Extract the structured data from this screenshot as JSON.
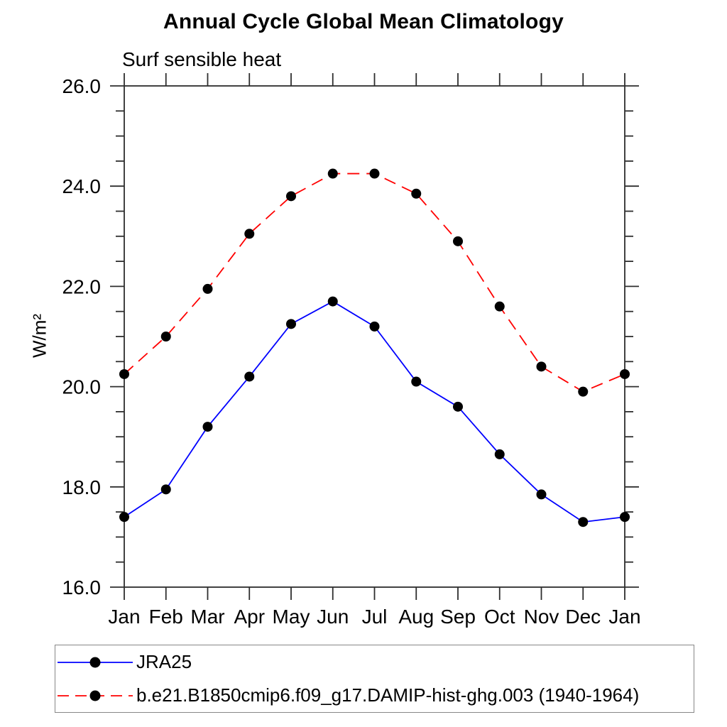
{
  "chart_data": {
    "type": "line",
    "title": "Annual Cycle Global Mean Climatology",
    "subtitle": "Surf sensible heat",
    "xlabel": "",
    "ylabel": "W/m²",
    "categories": [
      "Jan",
      "Feb",
      "Mar",
      "Apr",
      "May",
      "Jun",
      "Jul",
      "Aug",
      "Sep",
      "Oct",
      "Nov",
      "Dec",
      "Jan"
    ],
    "ylim": [
      16.0,
      26.0
    ],
    "ytick_major_step": 2.0,
    "ytick_minor_step": 0.5,
    "ytick_labels": [
      "16.0",
      "18.0",
      "20.0",
      "22.0",
      "24.0",
      "26.0"
    ],
    "grid": false,
    "legend_position": "bottom-left-box",
    "series": [
      {
        "name": "JRA25",
        "color": "#0000ff",
        "line_style": "solid",
        "marker": "filled-circle",
        "marker_color": "#000000",
        "values": [
          17.4,
          17.95,
          19.2,
          20.2,
          21.25,
          21.7,
          21.2,
          20.1,
          19.6,
          18.65,
          17.85,
          17.3,
          17.4
        ]
      },
      {
        "name": "b.e21.B1850cmip6.f09_g17.DAMIP-hist-ghg.003 (1940-1964)",
        "color": "#ff0000",
        "line_style": "dashed",
        "marker": "filled-circle",
        "marker_color": "#000000",
        "values": [
          20.25,
          21.0,
          21.95,
          23.05,
          23.8,
          24.25,
          24.25,
          23.85,
          22.9,
          21.6,
          20.4,
          19.9,
          20.25
        ]
      }
    ]
  }
}
